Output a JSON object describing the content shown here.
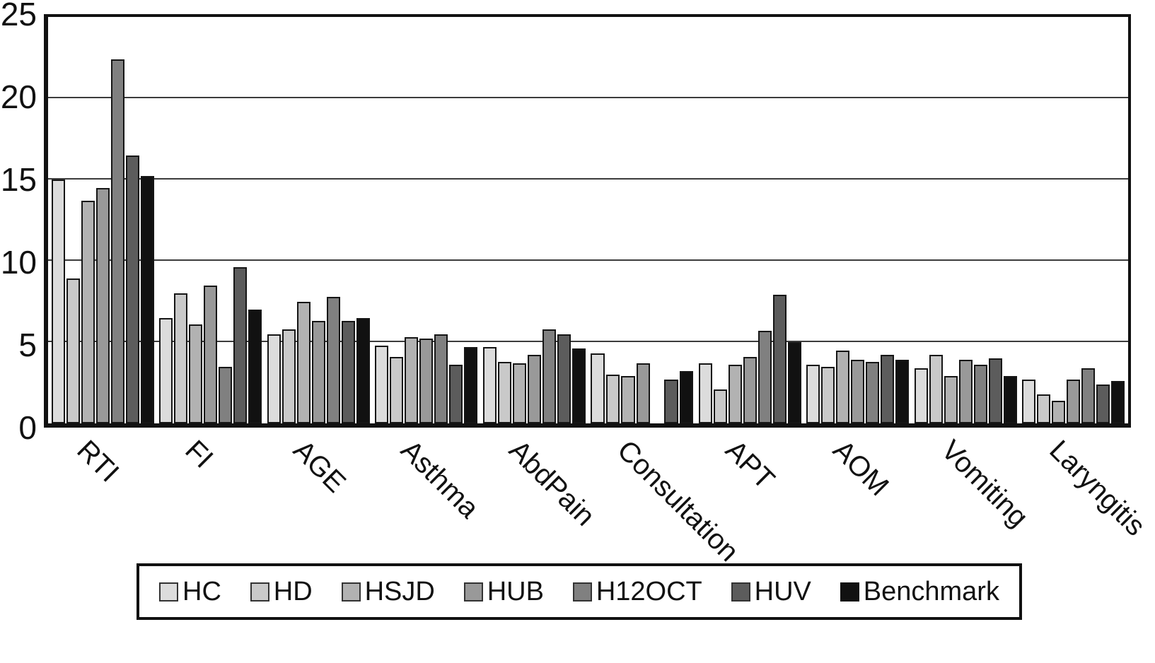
{
  "chart_data": {
    "type": "bar",
    "title": "",
    "xlabel": "",
    "ylabel": "",
    "ylim": [
      0,
      25
    ],
    "yticks": [
      0,
      5,
      10,
      15,
      20,
      25
    ],
    "grid": "horizontal",
    "legend_position": "bottom",
    "bar_outline_color": "#161616",
    "categories": [
      "RTI",
      "FI",
      "AGE",
      "Asthma",
      "AbdPain",
      "Consultation",
      "APT",
      "AOM",
      "Vomiting",
      "Laryngitis"
    ],
    "series": [
      {
        "name": "HC",
        "color": "#dcdcdc",
        "values": [
          15.0,
          6.5,
          5.5,
          4.8,
          4.7,
          4.3,
          3.7,
          3.6,
          3.4,
          2.7
        ]
      },
      {
        "name": "HD",
        "color": "#c9c9c9",
        "values": [
          8.9,
          8.0,
          5.8,
          4.1,
          3.8,
          3.0,
          2.1,
          3.5,
          4.2,
          1.8
        ]
      },
      {
        "name": "HSJD",
        "color": "#b2b2b2",
        "values": [
          13.7,
          6.1,
          7.5,
          5.3,
          3.7,
          2.9,
          3.6,
          4.5,
          2.9,
          1.4
        ]
      },
      {
        "name": "HUB",
        "color": "#999999",
        "values": [
          14.5,
          8.5,
          6.3,
          5.2,
          4.2,
          3.7,
          4.1,
          3.9,
          3.9,
          2.7
        ]
      },
      {
        "name": "H12OCT",
        "color": "#808080",
        "values": [
          22.4,
          3.5,
          7.8,
          5.5,
          5.8,
          0,
          5.7,
          3.8,
          3.6,
          3.4
        ]
      },
      {
        "name": "HUV",
        "color": "#5c5c5c",
        "values": [
          16.5,
          9.6,
          6.3,
          3.6,
          5.5,
          2.7,
          7.9,
          4.2,
          4.0,
          2.4
        ]
      },
      {
        "name": "Benchmark",
        "color": "#111111",
        "values": [
          15.2,
          7.0,
          6.5,
          4.7,
          4.6,
          3.2,
          5.0,
          3.9,
          2.9,
          2.6
        ]
      }
    ]
  }
}
